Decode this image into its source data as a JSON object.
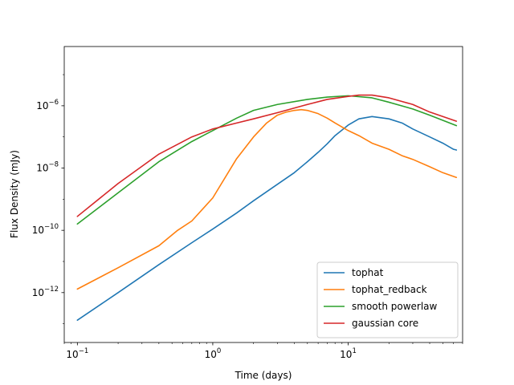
{
  "chart_data": {
    "type": "line",
    "title": "",
    "xlabel": "Time (days)",
    "ylabel": "Flux Density (mJy)",
    "xscale": "log",
    "yscale": "log",
    "xlim": [
      0.08,
      70
    ],
    "ylim": [
      2.5e-14,
      8e-05
    ],
    "grid": false,
    "legend_position": "lower-right",
    "x_ticks": [
      {
        "value": 0.1,
        "base": "10",
        "exp": "−1"
      },
      {
        "value": 1,
        "base": "10",
        "exp": "0"
      },
      {
        "value": 10,
        "base": "10",
        "exp": "1"
      }
    ],
    "y_ticks": [
      {
        "value": 1e-12,
        "base": "10",
        "exp": "−12"
      },
      {
        "value": 1e-10,
        "base": "10",
        "exp": "−10"
      },
      {
        "value": 1e-08,
        "base": "10",
        "exp": "−8"
      },
      {
        "value": 1e-06,
        "base": "10",
        "exp": "−6"
      }
    ],
    "series": [
      {
        "name": "tophat",
        "color": "#1f77b4",
        "points": [
          [
            0.1,
            1.3e-13
          ],
          [
            0.2,
            1e-12
          ],
          [
            0.4,
            7.9e-12
          ],
          [
            0.7,
            4e-11
          ],
          [
            1.0,
            1.1e-10
          ],
          [
            1.5,
            3.6e-10
          ],
          [
            2,
            8.9e-10
          ],
          [
            3,
            3e-09
          ],
          [
            4,
            7.1e-09
          ],
          [
            5,
            1.6e-08
          ],
          [
            6,
            3.2e-08
          ],
          [
            7,
            6e-08
          ],
          [
            8,
            1.1e-07
          ],
          [
            10,
            2.4e-07
          ],
          [
            12,
            3.8e-07
          ],
          [
            15,
            4.5e-07
          ],
          [
            20,
            3.8e-07
          ],
          [
            25,
            2.8e-07
          ],
          [
            30,
            1.8e-07
          ],
          [
            40,
            1e-07
          ],
          [
            50,
            6.3e-08
          ],
          [
            60,
            4e-08
          ],
          [
            63,
            3.8e-08
          ]
        ]
      },
      {
        "name": "tophat_redback",
        "color": "#ff7f0e",
        "points": [
          [
            0.1,
            1.3e-12
          ],
          [
            0.2,
            6.3e-12
          ],
          [
            0.4,
            3.2e-11
          ],
          [
            0.55,
            1e-10
          ],
          [
            0.7,
            2e-10
          ],
          [
            1.0,
            1.1e-09
          ],
          [
            1.5,
            2e-08
          ],
          [
            2,
            1e-07
          ],
          [
            2.5,
            2.8e-07
          ],
          [
            3,
            5e-07
          ],
          [
            3.5,
            6.3e-07
          ],
          [
            4,
            7.1e-07
          ],
          [
            4.5,
            7.5e-07
          ],
          [
            5,
            7.1e-07
          ],
          [
            6,
            5.6e-07
          ],
          [
            7,
            4e-07
          ],
          [
            8,
            2.8e-07
          ],
          [
            10,
            1.6e-07
          ],
          [
            12,
            1.1e-07
          ],
          [
            15,
            6.3e-08
          ],
          [
            20,
            4e-08
          ],
          [
            25,
            2.5e-08
          ],
          [
            30,
            1.9e-08
          ],
          [
            40,
            1.1e-08
          ],
          [
            50,
            7.1e-09
          ],
          [
            63,
            5e-09
          ]
        ]
      },
      {
        "name": "smooth powerlaw",
        "color": "#2ca02c",
        "points": [
          [
            0.1,
            1.6e-10
          ],
          [
            0.2,
            1.6e-09
          ],
          [
            0.4,
            1.6e-08
          ],
          [
            0.7,
            7.1e-08
          ],
          [
            1.0,
            1.6e-07
          ],
          [
            1.5,
            4e-07
          ],
          [
            2,
            7.1e-07
          ],
          [
            3,
            1.1e-06
          ],
          [
            5,
            1.6e-06
          ],
          [
            7,
            1.9e-06
          ],
          [
            10,
            2.1e-06
          ],
          [
            15,
            1.8e-06
          ],
          [
            20,
            1.3e-06
          ],
          [
            30,
            7.9e-07
          ],
          [
            40,
            5e-07
          ],
          [
            63,
            2.3e-07
          ]
        ]
      },
      {
        "name": "gaussian core",
        "color": "#d62728",
        "points": [
          [
            0.1,
            2.8e-10
          ],
          [
            0.2,
            3.2e-09
          ],
          [
            0.4,
            2.8e-08
          ],
          [
            0.7,
            1e-07
          ],
          [
            1.0,
            1.8e-07
          ],
          [
            1.5,
            2.8e-07
          ],
          [
            2,
            3.8e-07
          ],
          [
            3,
            6e-07
          ],
          [
            5,
            1.1e-06
          ],
          [
            7,
            1.6e-06
          ],
          [
            10,
            2e-06
          ],
          [
            12,
            2.2e-06
          ],
          [
            15,
            2.2e-06
          ],
          [
            20,
            1.8e-06
          ],
          [
            30,
            1.1e-06
          ],
          [
            40,
            6.3e-07
          ],
          [
            63,
            3.2e-07
          ]
        ]
      }
    ]
  }
}
